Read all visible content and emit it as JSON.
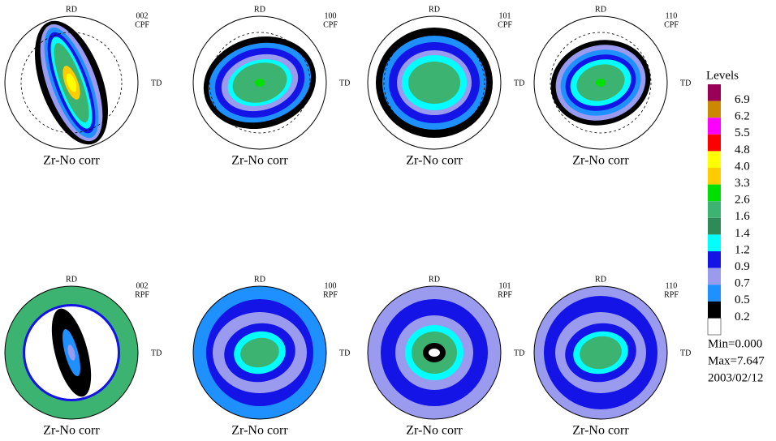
{
  "plots": [
    {
      "rd": "RD",
      "td": "TD",
      "pole": "002",
      "kind": "CPF",
      "caption": "Zr-No corr"
    },
    {
      "rd": "RD",
      "td": "TD",
      "pole": "100",
      "kind": "CPF",
      "caption": "Zr-No corr"
    },
    {
      "rd": "RD",
      "td": "TD",
      "pole": "101",
      "kind": "CPF",
      "caption": "Zr-No corr"
    },
    {
      "rd": "RD",
      "td": "TD",
      "pole": "110",
      "kind": "CPF",
      "caption": "Zr-No corr"
    },
    {
      "rd": "RD",
      "td": "TD",
      "pole": "002",
      "kind": "RPF",
      "caption": "Zr-No corr"
    },
    {
      "rd": "RD",
      "td": "TD",
      "pole": "100",
      "kind": "RPF",
      "caption": "Zr-No corr"
    },
    {
      "rd": "RD",
      "td": "TD",
      "pole": "101",
      "kind": "RPF",
      "caption": "Zr-No corr"
    },
    {
      "rd": "RD",
      "td": "TD",
      "pole": "110",
      "kind": "RPF",
      "caption": "Zr-No corr"
    }
  ],
  "legend": {
    "title": "Levels",
    "levels": [
      "6.9",
      "6.2",
      "5.5",
      "4.8",
      "4.0",
      "3.3",
      "2.6",
      "1.6",
      "1.4",
      "1.2",
      "0.9",
      "0.7",
      "0.5",
      "0.2"
    ],
    "min": "Min=0.000",
    "max": "Max=7.647",
    "date": "2003/02/12"
  }
}
